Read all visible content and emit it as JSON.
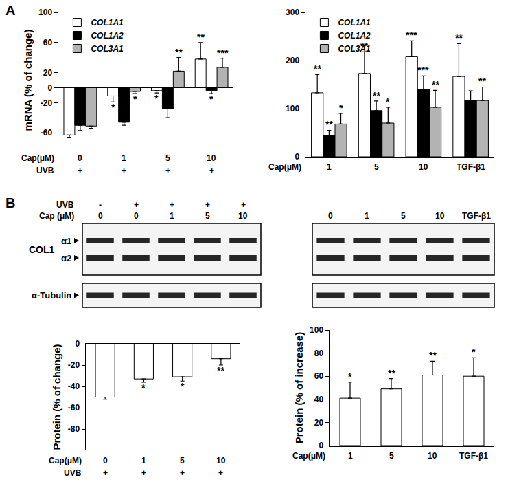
{
  "panel_labels": [
    "A",
    "B"
  ],
  "chart_data": [
    {
      "type": "bar",
      "y_label": "mRNA (% of change)",
      "x_label": "Cap(μM)",
      "categories": [
        "0",
        "1",
        "5",
        "10"
      ],
      "x_rows": [
        {
          "label": "UVB",
          "values": [
            "+",
            "+",
            "+",
            "+"
          ]
        }
      ],
      "ylim": [
        -80,
        100
      ],
      "yticks": [
        -60,
        -20,
        0,
        20,
        60,
        100
      ],
      "grid": false,
      "legend": "top left",
      "series": [
        {
          "name": "COL1A1",
          "color": "#ffffff",
          "values": [
            -63,
            -11,
            -4,
            38
          ],
          "errors": [
            3,
            8,
            3,
            22
          ],
          "significance": [
            null,
            "*",
            "*",
            "**"
          ]
        },
        {
          "name": "COL1A2",
          "color": "#000000",
          "values": [
            -50,
            -46,
            -28,
            -4
          ],
          "errors": [
            7,
            4,
            12,
            4
          ],
          "significance": [
            null,
            null,
            null,
            "*"
          ]
        },
        {
          "name": "COL3A1",
          "color": "#b3b3b3",
          "values": [
            -51,
            -5,
            22,
            27
          ],
          "errors": [
            3,
            3,
            18,
            12
          ],
          "significance": [
            null,
            "*",
            "**",
            "***"
          ]
        }
      ]
    },
    {
      "type": "bar",
      "x_label": "Cap(μM)",
      "categories": [
        "1",
        "5",
        "10",
        "TGF-β1"
      ],
      "ylim": [
        0,
        300
      ],
      "yticks": [
        0,
        100,
        200,
        300
      ],
      "grid": false,
      "legend": "top left",
      "series": [
        {
          "name": "COL1A1",
          "color": "#ffffff",
          "values": [
            133,
            173,
            208,
            167
          ],
          "errors": [
            38,
            45,
            33,
            68
          ],
          "significance": [
            "**",
            "**",
            "***",
            "**"
          ]
        },
        {
          "name": "COL1A2",
          "color": "#000000",
          "values": [
            45,
            96,
            140,
            117
          ],
          "errors": [
            10,
            20,
            28,
            20
          ],
          "significance": [
            "**",
            "**",
            "***",
            null
          ]
        },
        {
          "name": "COL3A1",
          "color": "#b3b3b3",
          "values": [
            68,
            70,
            103,
            117
          ],
          "errors": [
            22,
            33,
            35,
            28
          ],
          "significance": [
            "*",
            "*",
            "**",
            "**"
          ]
        }
      ]
    },
    {
      "type": "bar",
      "y_label": "Protein (% of change)",
      "x_label": "Cap(μM)",
      "categories": [
        "0",
        "1",
        "5",
        "10"
      ],
      "x_rows": [
        {
          "label": "UVB",
          "values": [
            "+",
            "+",
            "+",
            "+"
          ]
        }
      ],
      "ylim": [
        -100,
        0
      ],
      "yticks": [
        -80,
        -60,
        -40,
        -20,
        0
      ],
      "grid": false,
      "color": "#ffffff",
      "values": [
        -50,
        -33,
        -31,
        -14
      ],
      "errors": [
        2,
        3,
        4,
        6
      ],
      "significance": [
        null,
        "*",
        "*",
        "**"
      ]
    },
    {
      "type": "bar",
      "y_label": "Protein (% of increase)",
      "x_label": "Cap(μM)",
      "categories": [
        "1",
        "5",
        "10",
        "TGF-β1"
      ],
      "ylim": [
        0,
        100
      ],
      "yticks": [
        0,
        20,
        40,
        60,
        80,
        100
      ],
      "grid": false,
      "color": "#ffffff",
      "values": [
        41,
        49,
        61,
        60
      ],
      "errors": [
        14,
        9,
        12,
        16
      ],
      "significance": [
        "*",
        "**",
        "**",
        "*"
      ]
    }
  ],
  "blots": [
    {
      "rows": [
        {
          "label": "UVB",
          "values": [
            "-",
            "+",
            "+",
            "+",
            "+"
          ]
        },
        {
          "label": "Cap (μM)",
          "values": [
            "0",
            "0",
            "1",
            "5",
            "10"
          ]
        }
      ],
      "bands": [
        {
          "label": "COL1",
          "sublabels": [
            "α1",
            "α2"
          ]
        },
        {
          "label": "α-Tubulin"
        }
      ]
    },
    {
      "rows": [
        {
          "values": [
            "0",
            "1",
            "5",
            "10",
            "TGF-β1"
          ]
        }
      ]
    }
  ]
}
